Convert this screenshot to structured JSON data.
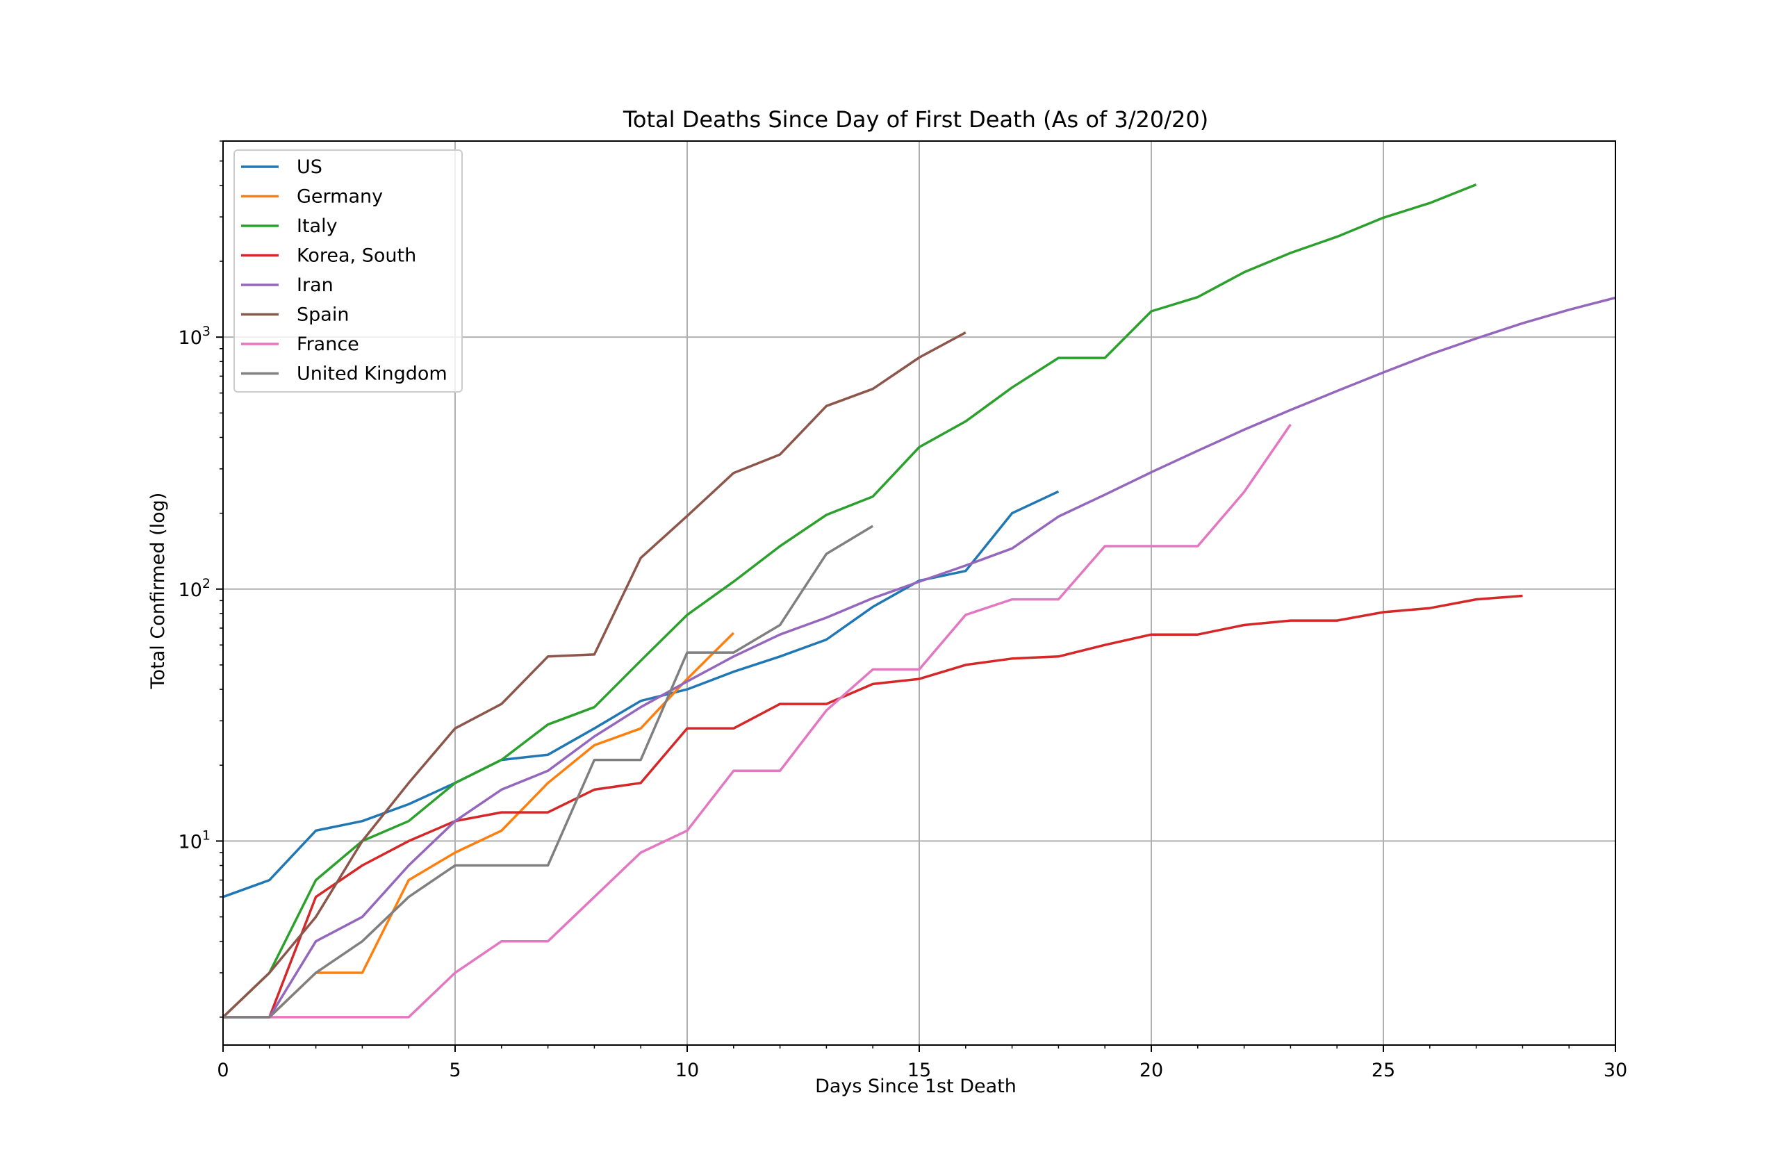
{
  "chart_data": {
    "type": "line",
    "title": "Total Deaths Since Day of First Death (As of 3/20/20)",
    "xlabel": "Days Since 1st Death",
    "ylabel": "Total Confirmed (log)",
    "xlim": [
      0,
      30
    ],
    "ylim": [
      1.55,
      6000
    ],
    "yscale": "log",
    "x_ticks": [
      0,
      5,
      10,
      15,
      20,
      25,
      30
    ],
    "y_ticks": [
      {
        "value": 10,
        "base": "10",
        "exp": "1"
      },
      {
        "value": 100,
        "base": "10",
        "exp": "2"
      },
      {
        "value": 1000,
        "base": "10",
        "exp": "3"
      }
    ],
    "grid": true,
    "legend_position": "top-left",
    "series": [
      {
        "name": "US",
        "color": "#1f77b4",
        "x": [
          0,
          1,
          2,
          3,
          4,
          5,
          6,
          7,
          8,
          9,
          10,
          11,
          12,
          13,
          14,
          15,
          16,
          17,
          18
        ],
        "values": [
          6,
          7,
          11,
          12,
          14,
          17,
          21,
          22,
          28,
          36,
          40,
          47,
          54,
          63,
          85,
          108,
          118,
          200,
          244
        ]
      },
      {
        "name": "Germany",
        "color": "#ff7f0e",
        "x": [
          0,
          1,
          2,
          3,
          4,
          5,
          6,
          7,
          8,
          9,
          10,
          11
        ],
        "values": [
          2,
          2,
          3,
          3,
          7,
          9,
          11,
          17,
          24,
          28,
          44,
          67
        ]
      },
      {
        "name": "Italy",
        "color": "#2ca02c",
        "x": [
          0,
          1,
          2,
          3,
          4,
          5,
          6,
          7,
          8,
          9,
          10,
          11,
          12,
          13,
          14,
          15,
          16,
          17,
          18,
          19,
          20,
          21,
          22,
          23,
          24,
          25,
          26,
          27
        ],
        "values": [
          2,
          3,
          7,
          10,
          12,
          17,
          21,
          29,
          34,
          52,
          79,
          107,
          148,
          197,
          233,
          366,
          463,
          631,
          827,
          827,
          1266,
          1441,
          1809,
          2158,
          2503,
          2978,
          3405,
          4032
        ]
      },
      {
        "name": "Korea, South",
        "color": "#d62728",
        "x": [
          0,
          1,
          2,
          3,
          4,
          5,
          6,
          7,
          8,
          9,
          10,
          11,
          12,
          13,
          14,
          15,
          16,
          17,
          18,
          19,
          20,
          21,
          22,
          23,
          24,
          25,
          26,
          27,
          28
        ],
        "values": [
          2,
          2,
          6,
          8,
          10,
          12,
          13,
          13,
          16,
          17,
          28,
          28,
          35,
          35,
          42,
          44,
          50,
          53,
          54,
          60,
          66,
          66,
          72,
          75,
          75,
          81,
          84,
          91,
          94
        ]
      },
      {
        "name": "Iran",
        "color": "#9467bd",
        "x": [
          0,
          1,
          2,
          3,
          4,
          5,
          6,
          7,
          8,
          9,
          10,
          11,
          12,
          13,
          14,
          15,
          16,
          17,
          18,
          19,
          20,
          21,
          22,
          23,
          24,
          25,
          26,
          27,
          28,
          29,
          30
        ],
        "values": [
          2,
          2,
          4,
          5,
          8,
          12,
          16,
          19,
          26,
          34,
          43,
          54,
          66,
          77,
          92,
          107,
          124,
          145,
          194,
          237,
          291,
          354,
          429,
          514,
          611,
          724,
          853,
          988,
          1135,
          1284,
          1433
        ]
      },
      {
        "name": "Spain",
        "color": "#8c564b",
        "x": [
          0,
          1,
          2,
          3,
          4,
          5,
          6,
          7,
          8,
          9,
          10,
          11,
          12,
          13,
          14,
          15,
          16
        ],
        "values": [
          2,
          3,
          5,
          10,
          17,
          28,
          35,
          54,
          55,
          133,
          195,
          289,
          342,
          533,
          623,
          830,
          1043
        ]
      },
      {
        "name": "France",
        "color": "#e377c2",
        "x": [
          0,
          1,
          2,
          3,
          4,
          5,
          6,
          7,
          8,
          9,
          10,
          11,
          12,
          13,
          14,
          15,
          16,
          17,
          18,
          19,
          20,
          21,
          22,
          23
        ],
        "values": [
          2,
          2,
          2,
          2,
          2,
          3,
          4,
          4,
          6,
          9,
          11,
          19,
          19,
          33,
          48,
          48,
          79,
          91,
          91,
          148,
          148,
          148,
          243,
          450
        ]
      },
      {
        "name": "United Kingdom",
        "color": "#7f7f7f",
        "x": [
          0,
          1,
          2,
          3,
          4,
          5,
          6,
          7,
          8,
          9,
          10,
          11,
          12,
          13,
          14
        ],
        "values": [
          2,
          2,
          3,
          4,
          6,
          8,
          8,
          8,
          21,
          21,
          56,
          56,
          72,
          138,
          178
        ]
      }
    ]
  }
}
